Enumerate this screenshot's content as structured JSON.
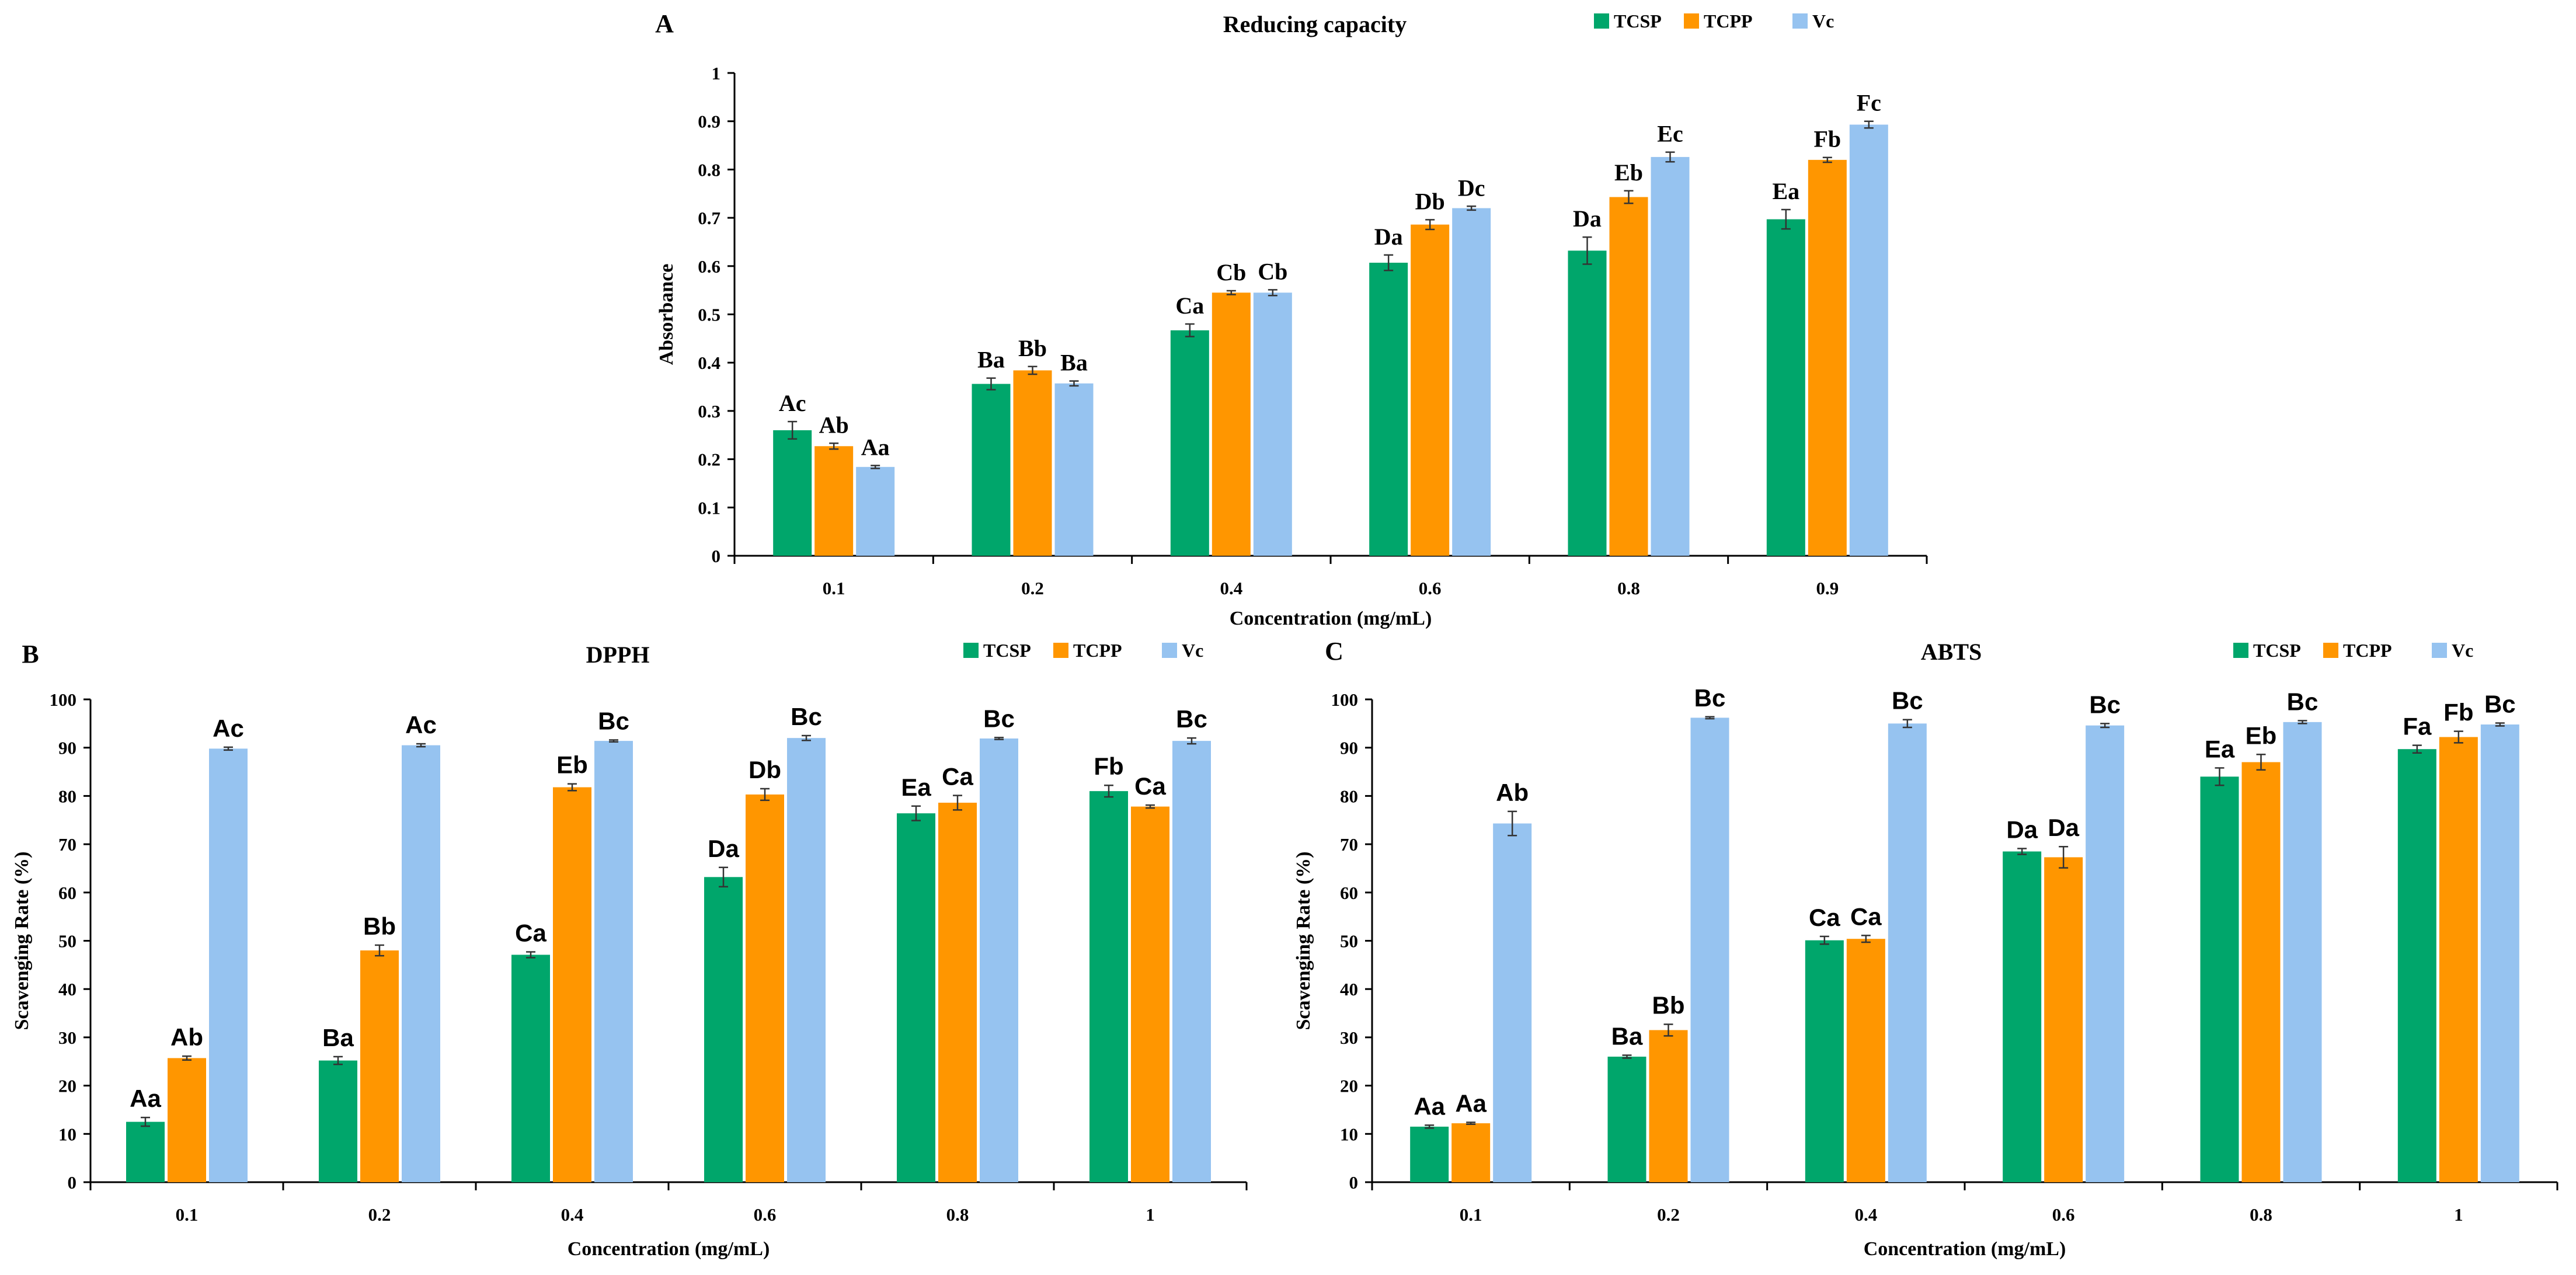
{
  "chart_data": [
    {
      "panel": "A",
      "type": "bar",
      "title": "Reducing capacity",
      "xlabel": "Concentration (mg/mL)",
      "ylabel": "Absorbance",
      "ylim": [
        0,
        1
      ],
      "yticks": [
        "0",
        "0.1",
        "0.2",
        "0.3",
        "0.4",
        "0.5",
        "0.6",
        "0.7",
        "0.8",
        "0.9",
        "1"
      ],
      "categories": [
        "0.1",
        "0.2",
        "0.4",
        "0.6",
        "0.8",
        "0.9"
      ],
      "legend_position": "top-right",
      "grid": false,
      "series": [
        {
          "name": "TCSP",
          "color": "#00A66B",
          "values": [
            0.26,
            0.356,
            0.467,
            0.607,
            0.632,
            0.697
          ],
          "errors": [
            0.018,
            0.012,
            0.013,
            0.016,
            0.028,
            0.02
          ],
          "labels": [
            "Ac",
            "Ba",
            "Ca",
            "Da",
            "Da",
            "Ea"
          ]
        },
        {
          "name": "TCPP",
          "color": "#FF9600",
          "values": [
            0.227,
            0.384,
            0.545,
            0.686,
            0.743,
            0.82
          ],
          "errors": [
            0.006,
            0.008,
            0.004,
            0.01,
            0.013,
            0.005
          ],
          "labels": [
            "Ab",
            "Bb",
            "Cb",
            "Db",
            "Eb",
            "Fb"
          ]
        },
        {
          "name": "Vc",
          "color": "#96C3F0",
          "values": [
            0.184,
            0.357,
            0.545,
            0.72,
            0.826,
            0.893
          ],
          "errors": [
            0.003,
            0.005,
            0.006,
            0.004,
            0.01,
            0.007
          ],
          "labels": [
            "Aa",
            "Ba",
            "Cb",
            "Dc",
            "Ec",
            "Fc"
          ]
        }
      ]
    },
    {
      "panel": "B",
      "type": "bar",
      "title": "DPPH",
      "xlabel": "Concentration (mg/mL)",
      "ylabel": "Scavenging Rate (%)",
      "ylim": [
        0,
        100
      ],
      "yticks": [
        "0",
        "10",
        "20",
        "30",
        "40",
        "50",
        "60",
        "70",
        "80",
        "90",
        "100"
      ],
      "categories": [
        "0.1",
        "0.2",
        "0.4",
        "0.6",
        "0.8",
        "1"
      ],
      "legend_position": "top-right",
      "grid": false,
      "series": [
        {
          "name": "TCSP",
          "color": "#00A66B",
          "values": [
            12.5,
            25.2,
            47.1,
            63.2,
            76.4,
            81.0
          ],
          "errors": [
            0.9,
            0.8,
            0.6,
            2.0,
            1.5,
            1.2
          ],
          "labels": [
            "Aa",
            "Ba",
            "Ca",
            "Da",
            "Ea",
            "Fb"
          ]
        },
        {
          "name": "TCPP",
          "color": "#FF9600",
          "values": [
            25.7,
            48.0,
            81.8,
            80.3,
            78.6,
            77.8
          ],
          "errors": [
            0.4,
            1.1,
            0.7,
            1.2,
            1.5,
            0.3
          ],
          "labels": [
            "Ab",
            "Bb",
            "Eb",
            "Db",
            "Ca",
            "Ca"
          ]
        },
        {
          "name": "Vc",
          "color": "#96C3F0",
          "values": [
            89.8,
            90.5,
            91.4,
            92.0,
            91.9,
            91.4
          ],
          "errors": [
            0.3,
            0.3,
            0.2,
            0.5,
            0.2,
            0.6
          ],
          "labels": [
            "Ac",
            "Ac",
            "Bc",
            "Bc",
            "Bc",
            "Bc"
          ]
        }
      ]
    },
    {
      "panel": "C",
      "type": "bar",
      "title": "ABTS",
      "xlabel": "Concentration (mg/mL)",
      "ylabel": "Scavenging Rate (%)",
      "ylim": [
        0,
        100
      ],
      "yticks": [
        "0",
        "10",
        "20",
        "30",
        "40",
        "50",
        "60",
        "70",
        "80",
        "90",
        "100"
      ],
      "categories": [
        "0.1",
        "0.2",
        "0.4",
        "0.6",
        "0.8",
        "1"
      ],
      "legend_position": "top-right",
      "grid": false,
      "series": [
        {
          "name": "TCSP",
          "color": "#00A66B",
          "values": [
            11.5,
            26.0,
            50.1,
            68.5,
            84.0,
            89.7
          ],
          "errors": [
            0.3,
            0.3,
            0.8,
            0.6,
            1.8,
            0.8
          ],
          "labels": [
            "Aa",
            "Ba",
            "Ca",
            "Da",
            "Ea",
            "Fa"
          ]
        },
        {
          "name": "TCPP",
          "color": "#FF9600",
          "values": [
            12.2,
            31.5,
            50.4,
            67.3,
            87.0,
            92.2
          ],
          "errors": [
            0.2,
            1.2,
            0.7,
            2.2,
            1.6,
            1.2
          ],
          "labels": [
            "Aa",
            "Bb",
            "Ca",
            "Da",
            "Eb",
            "Fb"
          ]
        },
        {
          "name": "Vc",
          "color": "#96C3F0",
          "values": [
            74.3,
            96.2,
            95.0,
            94.6,
            95.3,
            94.8
          ],
          "errors": [
            2.5,
            0.2,
            0.8,
            0.4,
            0.3,
            0.3
          ],
          "labels": [
            "Ab",
            "Bc",
            "Bc",
            "Bc",
            "Bc",
            "Bc"
          ]
        }
      ]
    }
  ]
}
